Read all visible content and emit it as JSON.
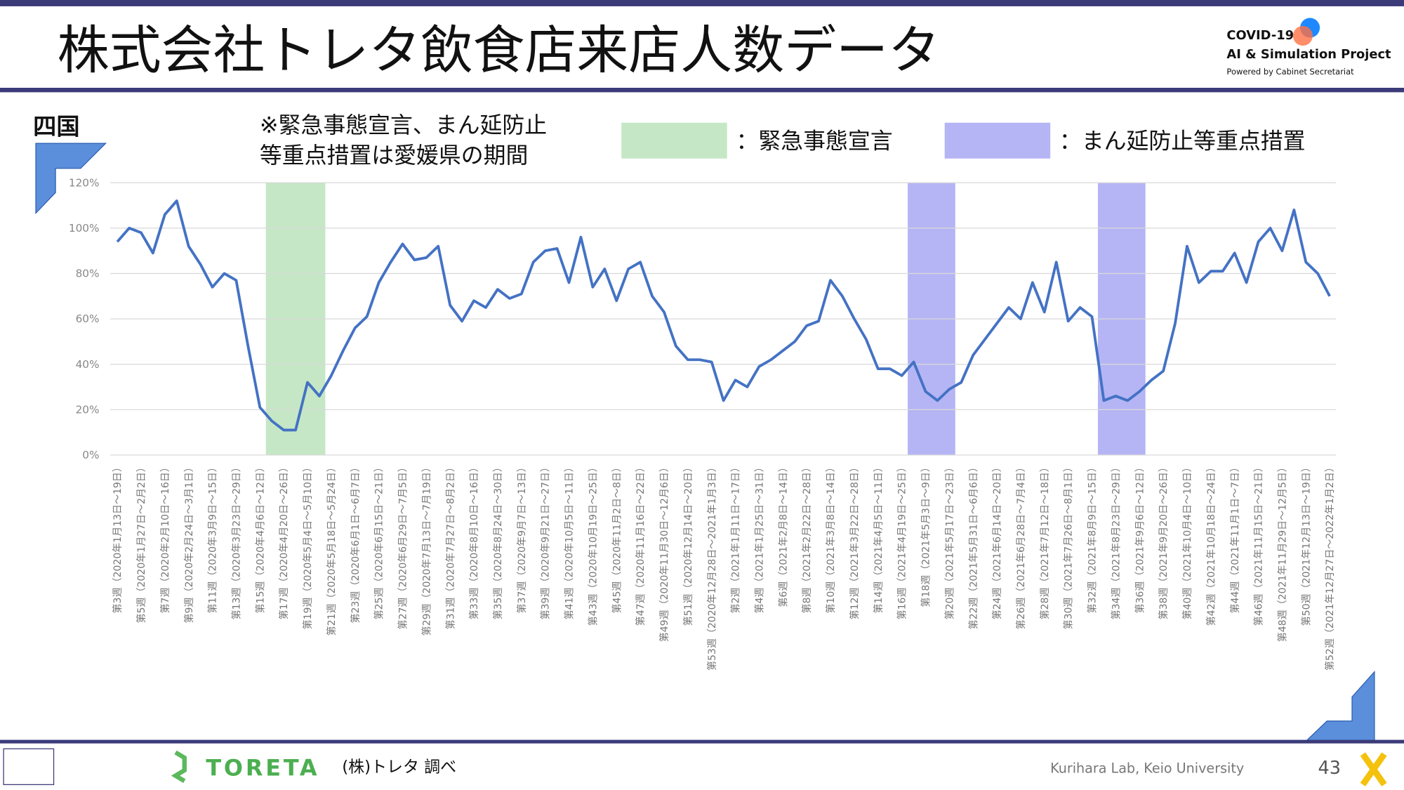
{
  "header": {
    "title": "株式会社トレタ飲食店来店人数データ",
    "logo_lines": [
      "COVID-19",
      "AI & Simulation Project",
      "Powered by Cabinet Secretariat"
    ]
  },
  "region": "四国",
  "note": [
    "※緊急事態宣言、まん延防止",
    "等重点措置は愛媛県の期間"
  ],
  "legend": [
    {
      "label": "：緊急事態宣言",
      "color": "#c5e7c5"
    },
    {
      "label": "：まん延防止等重点措置",
      "color": "#b5b5f5"
    }
  ],
  "chart_data": {
    "type": "line",
    "color": "#4472c4",
    "grid": true,
    "ylim": [
      0,
      120
    ],
    "yticks": [
      {
        "value": 0,
        "label": "0%"
      },
      {
        "value": 20,
        "label": "20%"
      },
      {
        "value": 40,
        "label": "40%"
      },
      {
        "value": 60,
        "label": "60%"
      },
      {
        "value": 80,
        "label": "80%"
      },
      {
        "value": 100,
        "label": "100%"
      },
      {
        "value": 120,
        "label": "120%"
      }
    ],
    "periods": [
      {
        "color": "#c5e7c5",
        "from": 12.5,
        "to": 17.5
      },
      {
        "color": "#b5b5f5",
        "from": 66.5,
        "to": 70.5
      },
      {
        "color": "#b5b5f5",
        "from": 82.5,
        "to": 86.5
      }
    ],
    "categories": [
      "第3週（2020年1月13日～19日）",
      null,
      "第5週（2020年1月27日～2月2日）",
      null,
      "第7週（2020年2月10日～16日）",
      null,
      "第9週（2020年2月24日～3月1日）",
      null,
      "第11週（2020年3月9日～15日）",
      null,
      "第13週（2020年3月23日～29日）",
      null,
      "第15週（2020年4月6日～12日）",
      null,
      "第17週（2020年4月20日～26日）",
      null,
      "第19週（2020年5月4日～5月10日）",
      null,
      "第21週（2020年5月18日～5月24日）",
      null,
      "第23週（2020年6月1日～6月7日）",
      null,
      "第25週（2020年6月15日～21日）",
      null,
      "第27週（2020年6月29日～7月5日）",
      null,
      "第29週（2020年7月13日～7月19日）",
      null,
      "第31週（2020年7月27日～8月2日）",
      null,
      "第33週（2020年8月10日～16日）",
      null,
      "第35週（2020年8月24日～30日）",
      null,
      "第37週（2020年9月7日～13日）",
      null,
      "第39週（2020年9月21日～27日）",
      null,
      "第41週（2020年10月5日～11日）",
      null,
      "第43週（2020年10月19日～25日）",
      null,
      "第45週（2020年11月2日～8日）",
      null,
      "第47週（2020年11月16日～22日）",
      null,
      "第49週（2020年11月30日～12月6日）",
      null,
      "第51週（2020年12月14日～20日）",
      null,
      "第53週（2020年12月28日～2021年1月3日）",
      null,
      "第2週（2021年1月11日～17日）",
      null,
      "第4週（2021年1月25日～31日）",
      null,
      "第6週（2021年2月8日～14日）",
      null,
      "第8週（2021年2月22日～28日）",
      null,
      "第10週（2021年3月8日～14日）",
      null,
      "第12週（2021年3月22日～28日）",
      null,
      "第14週（2021年4月5日～11日）",
      null,
      "第16週（2021年4月19日～25日）",
      null,
      "第18週（2021年5月3日～9日）",
      null,
      "第20週（2021年5月17日～23日）",
      null,
      "第22週（2021年5月31日～6月6日）",
      null,
      "第24週（2021年6月14日～20日）",
      null,
      "第26週（2021年6月28日～7月4日）",
      null,
      "第28週（2021年7月12日～18日）",
      null,
      "第30週（2021年7月26日～8月1日）",
      null,
      "第32週（2021年8月9日～15日）",
      null,
      "第34週（2021年8月23日～29日）",
      null,
      "第36週（2021年9月6日～12日）",
      null,
      "第38週（2021年9月20日～26日）",
      null,
      "第40週（2021年10月4日～10日）",
      null,
      "第42週（2021年10月18日～24日）",
      null,
      "第44週（2021年11月1日～7日）",
      null,
      "第46週（2021年11月15日～21日）",
      null,
      "第48週（2021年11月29日～12月5日）",
      null,
      "第50週（2021年12月13日～19日）",
      null,
      "第52週（2021年12月27日～2022年1月2日）"
    ],
    "values": [
      94,
      100,
      98,
      89,
      106,
      112,
      92,
      84,
      74,
      80,
      77,
      48,
      21,
      15,
      11,
      11,
      32,
      26,
      35,
      46,
      56,
      61,
      76,
      85,
      93,
      86,
      87,
      92,
      66,
      59,
      68,
      65,
      73,
      69,
      71,
      85,
      90,
      91,
      76,
      96,
      74,
      82,
      68,
      82,
      85,
      70,
      63,
      48,
      42,
      42,
      41,
      24,
      33,
      30,
      39,
      42,
      46,
      50,
      57,
      59,
      77,
      70,
      60,
      51,
      38,
      38,
      35,
      41,
      28,
      24,
      29,
      32,
      44,
      51,
      58,
      65,
      60,
      76,
      63,
      85,
      59,
      65,
      61,
      24,
      26,
      24,
      28,
      33,
      37,
      58,
      92,
      76,
      81,
      81,
      89,
      76,
      94,
      100,
      90,
      108,
      85,
      80,
      70
    ]
  },
  "footer": {
    "source": "(株)トレタ 調べ",
    "brand": "TORETA",
    "lab": "Kurihara Lab, Keio University",
    "page": "43"
  }
}
